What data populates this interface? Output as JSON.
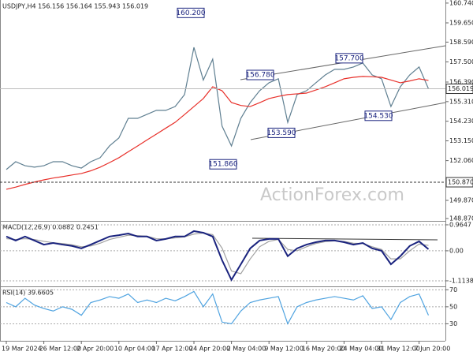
{
  "chart_data": [
    {
      "type": "line",
      "title": "USDJPY,H4 156.156 156.164 155.943 156.019",
      "ylim": [
        148.74,
        160.91
      ],
      "yticks": [
        {
          "value": 160.74,
          "label": "160.740"
        },
        {
          "value": 159.65,
          "label": "159.650"
        },
        {
          "value": 158.59,
          "label": "158.590"
        },
        {
          "value": 157.5,
          "label": "157.500"
        },
        {
          "value": 156.39,
          "label": "156.390"
        },
        {
          "value": 155.31,
          "label": "155.310"
        },
        {
          "value": 154.23,
          "label": "154.230"
        },
        {
          "value": 153.15,
          "label": "153.150"
        },
        {
          "value": 152.06,
          "label": "152.060"
        },
        {
          "value": 149.87,
          "label": "149.870"
        },
        {
          "value": 148.87,
          "label": "148.870"
        }
      ],
      "last_price": 156.019,
      "level": {
        "value": 150.87,
        "label": "150.870"
      },
      "annotations": [
        {
          "value": 160.2,
          "label": "160.200"
        },
        {
          "value": 156.78,
          "label": "156.780"
        },
        {
          "value": 157.7,
          "label": "157.700"
        },
        {
          "value": 153.59,
          "label": "153.590"
        },
        {
          "value": 154.53,
          "label": "154.530"
        },
        {
          "value": 151.86,
          "label": "151.860"
        }
      ],
      "watermark": "ActionForex.com",
      "series": [
        {
          "color": "#5f7f91",
          "values": [
            151.57,
            152.0,
            151.78,
            151.7,
            151.78,
            152.0,
            152.0,
            151.78,
            151.65,
            152.0,
            152.22,
            152.87,
            153.31,
            154.39,
            154.39,
            154.61,
            154.83,
            154.83,
            155.04,
            155.7,
            158.3,
            156.5,
            157.65,
            153.96,
            152.87,
            154.39,
            155.26,
            155.91,
            156.35,
            156.57,
            154.17,
            155.7,
            155.91,
            156.35,
            156.78,
            157.09,
            157.09,
            157.22,
            157.44,
            156.78,
            156.57,
            155.04,
            156.13,
            156.78,
            157.22,
            156.02
          ]
        },
        {
          "color": "#e8302a",
          "values": [
            150.48,
            150.6,
            150.75,
            150.88,
            151.0,
            151.1,
            151.18,
            151.27,
            151.35,
            151.5,
            151.7,
            151.95,
            152.22,
            152.55,
            152.87,
            153.2,
            153.52,
            153.85,
            154.17,
            154.6,
            155.04,
            155.48,
            156.13,
            155.91,
            155.26,
            155.1,
            155.04,
            155.25,
            155.48,
            155.6,
            155.7,
            155.74,
            155.78,
            155.95,
            156.13,
            156.35,
            156.57,
            156.65,
            156.7,
            156.68,
            156.65,
            156.5,
            156.35,
            156.45,
            156.57,
            156.48
          ]
        }
      ]
    },
    {
      "type": "line",
      "title": "MACD(12,26,9) 0.0882 0.2451",
      "ylim": [
        -1.32,
        1.11
      ],
      "yticks": [
        0.9647,
        {
          "value": 0,
          "label": "0.00"
        },
        -1.1138
      ],
      "series": [
        {
          "color": "#a0a0a0",
          "values": [
            0.45,
            0.42,
            0.45,
            0.42,
            0.35,
            0.3,
            0.27,
            0.22,
            0.15,
            0.18,
            0.28,
            0.42,
            0.5,
            0.58,
            0.56,
            0.54,
            0.45,
            0.44,
            0.48,
            0.52,
            0.62,
            0.66,
            0.6,
            0.1,
            -0.75,
            -0.85,
            -0.3,
            0.15,
            0.35,
            0.42,
            0.05,
            0.0,
            0.15,
            0.27,
            0.34,
            0.37,
            0.35,
            0.28,
            0.27,
            0.15,
            0.05,
            -0.3,
            -0.3,
            0.0,
            0.25,
            0.2
          ]
        },
        {
          "color": "#1a237e",
          "values": [
            0.53,
            0.38,
            0.53,
            0.38,
            0.23,
            0.29,
            0.23,
            0.18,
            0.09,
            0.23,
            0.38,
            0.53,
            0.58,
            0.64,
            0.53,
            0.53,
            0.38,
            0.44,
            0.53,
            0.53,
            0.73,
            0.67,
            0.53,
            -0.35,
            -1.08,
            -0.5,
            0.09,
            0.38,
            0.44,
            0.44,
            -0.2,
            0.09,
            0.23,
            0.32,
            0.38,
            0.38,
            0.32,
            0.23,
            0.29,
            0.09,
            0,
            -0.5,
            -0.2,
            0.18,
            0.35,
            0.06
          ]
        }
      ]
    },
    {
      "type": "line",
      "title": "RSI(14) 39.6605",
      "ylim": [
        10,
        74
      ],
      "yticks": [
        70,
        50,
        30
      ],
      "categories": [
        "19 Mar 2024",
        null,
        null,
        null,
        "26 Mar 12:00",
        null,
        null,
        null,
        "2 Apr 20:00",
        null,
        null,
        null,
        "10 Apr 04:00",
        null,
        null,
        null,
        "17 Apr 12:00",
        null,
        null,
        null,
        "24 Apr 20:00",
        null,
        null,
        null,
        "2 May 04:00",
        null,
        null,
        null,
        "9 May 12:00",
        null,
        null,
        null,
        "16 May 20:00",
        null,
        null,
        null,
        "24 May 04:00",
        null,
        null,
        null,
        "31 May 12:00",
        null,
        null,
        null,
        "7 Jun 20:00",
        null
      ],
      "series": [
        {
          "color": "#4fa3e0",
          "values": [
            55,
            50,
            60,
            52,
            48,
            45,
            50,
            47,
            40,
            55,
            58,
            62,
            60,
            65,
            55,
            58,
            55,
            60,
            57,
            62,
            68,
            50,
            65,
            32,
            30,
            45,
            55,
            58,
            60,
            62,
            30,
            50,
            55,
            58,
            60,
            62,
            60,
            58,
            63,
            48,
            50,
            35,
            55,
            62,
            65,
            40
          ]
        }
      ]
    }
  ]
}
